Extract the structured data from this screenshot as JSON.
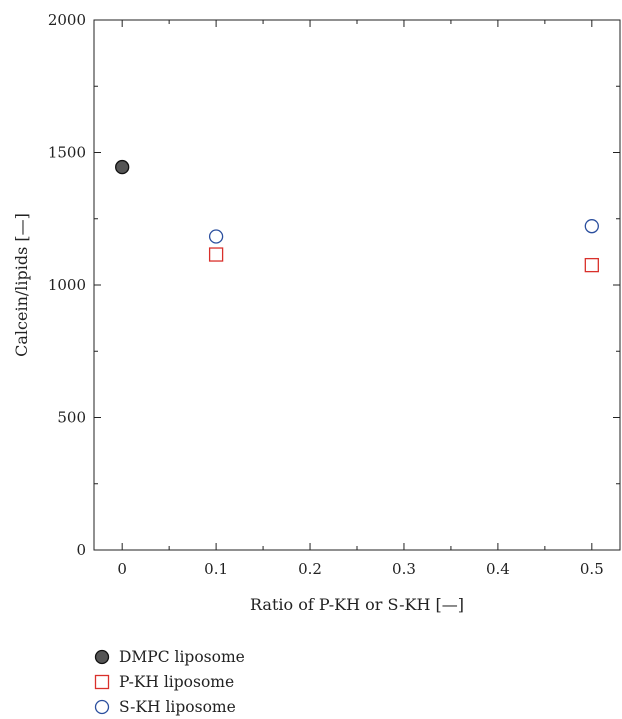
{
  "chart_data": {
    "type": "scatter",
    "xlabel": "Ratio of P-KH or S-KH [—]",
    "ylabel": "Calcein/lipids [—]",
    "xlim": [
      -0.03,
      0.53
    ],
    "ylim": [
      0,
      2000
    ],
    "x_ticks": [
      0,
      0.1,
      0.2,
      0.3,
      0.4,
      0.5
    ],
    "x_tick_labels": [
      "0",
      "0.1",
      "0.2",
      "0.3",
      "0.4",
      "0.5"
    ],
    "y_ticks": [
      0,
      500,
      1000,
      1500,
      2000
    ],
    "y_tick_labels": [
      "0",
      "500",
      "1000",
      "1500",
      "2000"
    ],
    "grid": false,
    "legend_position": "bottom-left-outside",
    "series": [
      {
        "name": "DMPC liposome",
        "marker": "filled-circle",
        "color": "#555555",
        "points": [
          {
            "x": 0,
            "y": 1445
          }
        ]
      },
      {
        "name": "P-KH liposome",
        "marker": "open-square",
        "color": "#d9302b",
        "points": [
          {
            "x": 0.1,
            "y": 1115
          },
          {
            "x": 0.5,
            "y": 1075
          }
        ]
      },
      {
        "name": "S-KH liposome",
        "marker": "open-circle",
        "color": "#2b4f9e",
        "points": [
          {
            "x": 0.1,
            "y": 1183
          },
          {
            "x": 0.5,
            "y": 1222
          }
        ]
      }
    ]
  }
}
